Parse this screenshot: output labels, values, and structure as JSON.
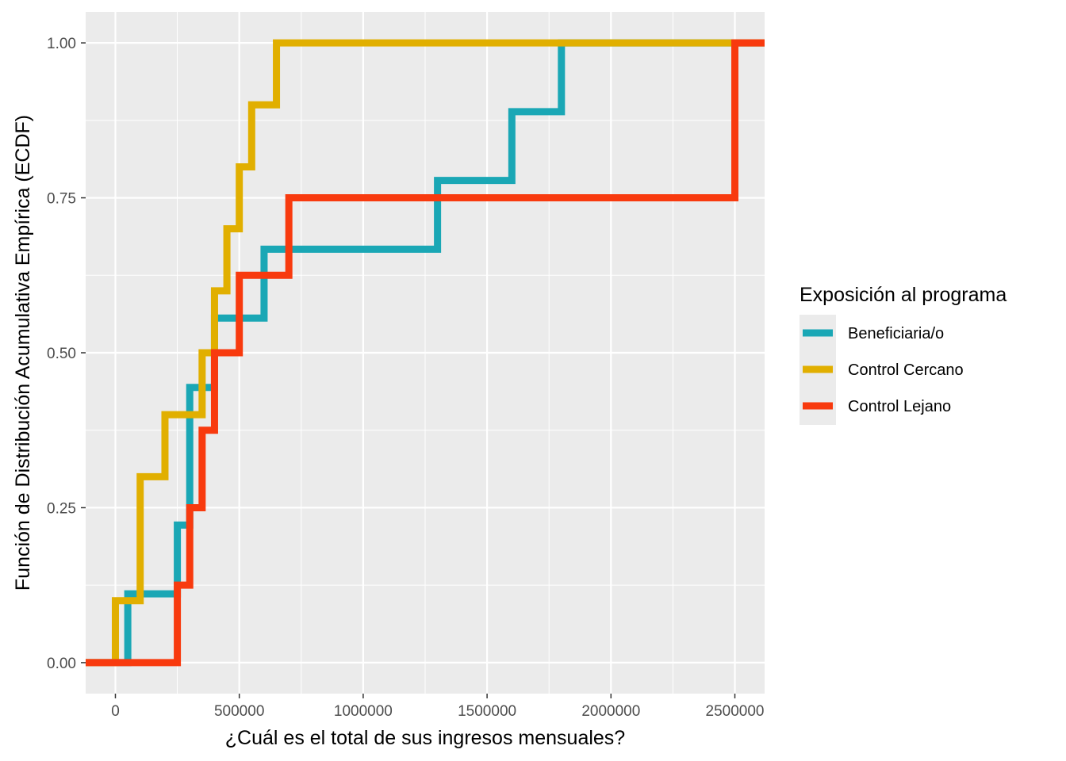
{
  "chart_data": {
    "type": "line",
    "subtype": "ecdf-step",
    "xlabel": "¿Cuál es el total de sus ingresos mensuales?",
    "ylabel": "Función de Distribución Acumulativa Empírica (ECDF)",
    "xlim": [
      -120000,
      2620000
    ],
    "ylim": [
      -0.05,
      1.05
    ],
    "x_ticks": [
      0,
      500000,
      1000000,
      1500000,
      2000000,
      2500000
    ],
    "x_tick_labels": [
      "0",
      "500000",
      "1000000",
      "1500000",
      "2000000",
      "2500000"
    ],
    "y_ticks": [
      0,
      0.25,
      0.5,
      0.75,
      1
    ],
    "y_tick_labels": [
      "0.00",
      "0.25",
      "0.50",
      "0.75",
      "1.00"
    ],
    "grid": true,
    "legend": {
      "title": "Exposición al programa",
      "position": "right"
    },
    "series": [
      {
        "name": "Beneficiaria/o",
        "color": "#1AA7B5",
        "points": [
          [
            50000,
            0.111
          ],
          [
            250000,
            0.222
          ],
          [
            300000,
            0.444
          ],
          [
            400000,
            0.556
          ],
          [
            600000,
            0.667
          ],
          [
            1300000,
            0.778
          ],
          [
            1600000,
            0.889
          ],
          [
            1800000,
            1.0
          ]
        ]
      },
      {
        "name": "Control Cercano",
        "color": "#E1AF00",
        "points": [
          [
            0,
            0.1
          ],
          [
            100000,
            0.3
          ],
          [
            200000,
            0.4
          ],
          [
            350000,
            0.5
          ],
          [
            400000,
            0.6
          ],
          [
            450000,
            0.7
          ],
          [
            500000,
            0.8
          ],
          [
            550000,
            0.9
          ],
          [
            650000,
            1.0
          ]
        ]
      },
      {
        "name": "Control Lejano",
        "color": "#F83A0E",
        "points": [
          [
            250000,
            0.125
          ],
          [
            300000,
            0.25
          ],
          [
            350000,
            0.375
          ],
          [
            400000,
            0.5
          ],
          [
            500000,
            0.625
          ],
          [
            700000,
            0.75
          ],
          [
            2500000,
            1.0
          ]
        ]
      }
    ]
  }
}
